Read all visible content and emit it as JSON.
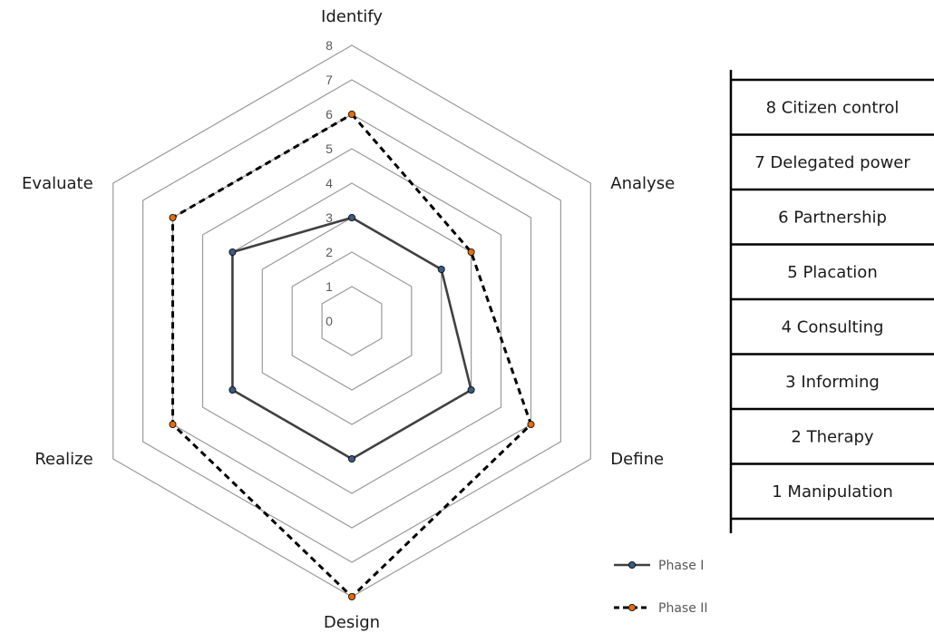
{
  "chart_data": {
    "type": "radar",
    "axes": [
      "Identify",
      "Analyse",
      "Define",
      "Design",
      "Realize",
      "Evaluate"
    ],
    "rmin": 0,
    "rmax": 8,
    "ticks": [
      0,
      1,
      2,
      3,
      4,
      5,
      6,
      7,
      8
    ],
    "grid": true,
    "series": [
      {
        "name": "Phase I",
        "values": [
          3,
          3,
          4,
          4,
          4,
          4
        ],
        "color": "#404040",
        "marker_color": "#3b5a80",
        "dash": "solid"
      },
      {
        "name": "Phase II",
        "values": [
          6,
          4,
          6,
          8,
          6,
          6
        ],
        "color": "#000000",
        "marker_color": "#e46c0a",
        "dash": "dashed"
      }
    ],
    "legend_position": "bottom-right"
  },
  "ladder": {
    "rungs": [
      "8 Citizen control",
      "7 Delegated power",
      "6 Partnership",
      "5 Placation",
      "4 Consulting",
      "3 Informing",
      "2 Therapy",
      "1 Manipulation"
    ]
  },
  "colors": {
    "grid": "#9a9a9a",
    "ladder_line": "#000000"
  }
}
